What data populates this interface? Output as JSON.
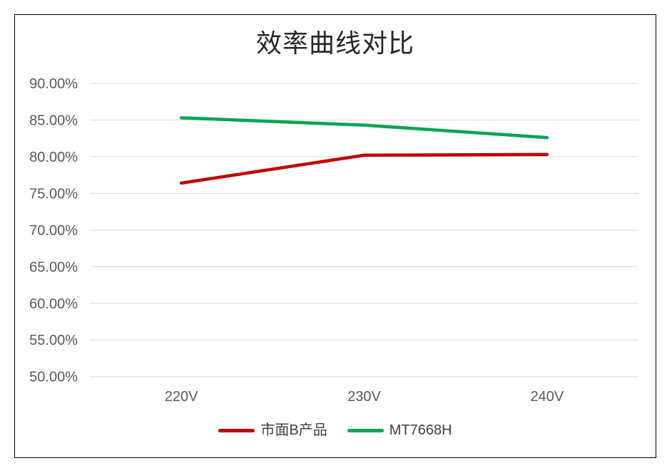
{
  "chart_data": {
    "type": "line",
    "title": "效率曲线对比",
    "categories": [
      "220V",
      "230V",
      "240V"
    ],
    "series": [
      {
        "name": "市面B产品",
        "color": "#C00000",
        "values": [
          76.4,
          80.2,
          80.3
        ]
      },
      {
        "name": "MT7668H",
        "color": "#00A651",
        "values": [
          85.3,
          84.3,
          82.6
        ]
      }
    ],
    "xlabel": "",
    "ylabel": "",
    "ylim": [
      50,
      90
    ],
    "yticks": [
      50,
      55,
      60,
      65,
      70,
      75,
      80,
      85,
      90
    ],
    "ytick_labels": [
      "50.00%",
      "55.00%",
      "60.00%",
      "65.00%",
      "70.00%",
      "75.00%",
      "80.00%",
      "85.00%",
      "90.00%"
    ],
    "grid": "horizontal-only",
    "legend_position": "bottom",
    "colors": {
      "background": "#FFFFFF",
      "frame_border": "#000000",
      "gridline": "#D9D9D9",
      "tick_label": "#595959",
      "title": "#262626",
      "legend_label": "#404040"
    }
  }
}
